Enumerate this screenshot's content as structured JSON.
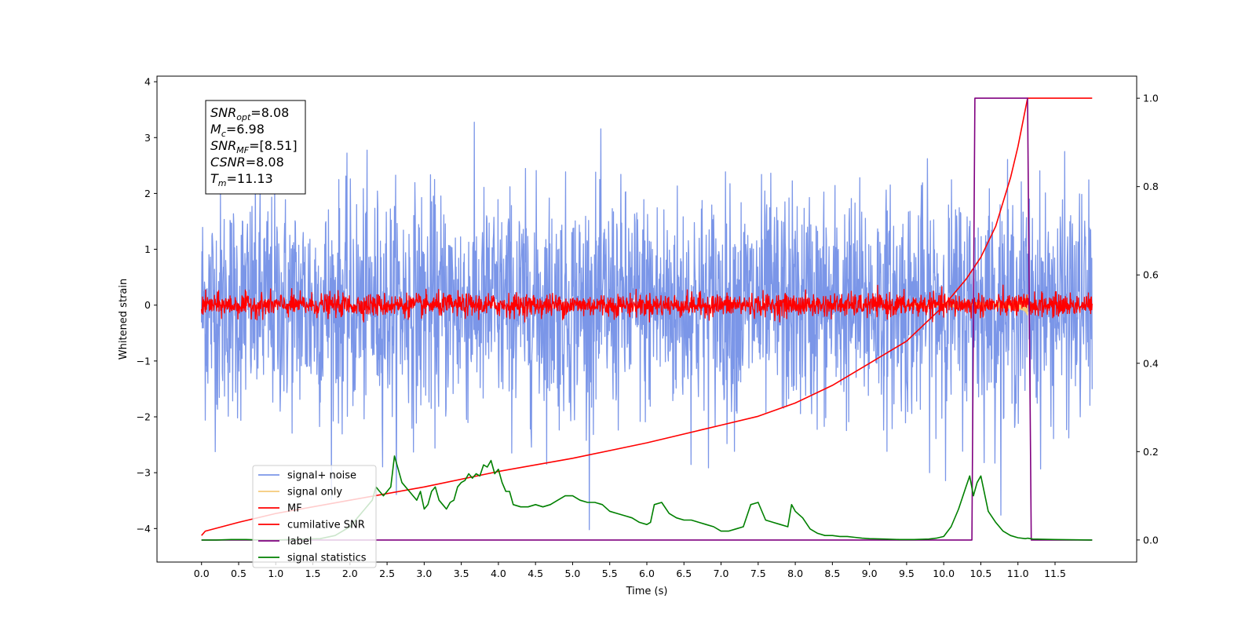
{
  "chart_data": {
    "type": "line",
    "title": "",
    "xlabel": "Time (s)",
    "ylabel": "Whitened strain",
    "xlim": [
      -0.6,
      12.6
    ],
    "ylim": [
      -4.6,
      4.1
    ],
    "y2lim": [
      -0.05,
      1.05
    ],
    "x_ticks": [
      0.0,
      0.5,
      1.0,
      1.5,
      2.0,
      2.5,
      3.0,
      3.5,
      4.0,
      4.5,
      5.0,
      5.5,
      6.0,
      6.5,
      7.0,
      7.5,
      8.0,
      8.5,
      9.0,
      9.5,
      10.0,
      10.5,
      11.0,
      11.5
    ],
    "x_tick_labels": [
      "0.0",
      "0.5",
      "1.0",
      "1.5",
      "2.0",
      "2.5",
      "3.0",
      "3.5",
      "4.0",
      "4.5",
      "5.0",
      "5.5",
      "6.0",
      "6.5",
      "7.0",
      "7.5",
      "8.0",
      "8.5",
      "9.0",
      "9.5",
      "10.0",
      "10.5",
      "11.0",
      "11.5"
    ],
    "y_ticks": [
      -4,
      -3,
      -2,
      -1,
      0,
      1,
      2,
      3,
      4
    ],
    "y_tick_labels": [
      "−4",
      "−3",
      "−2",
      "−1",
      "0",
      "1",
      "2",
      "3",
      "4"
    ],
    "y2_ticks": [
      0.0,
      0.2,
      0.4,
      0.6,
      0.8,
      1.0
    ],
    "y2_tick_labels": [
      "0.0",
      "0.2",
      "0.4",
      "0.6",
      "0.8",
      "1.0"
    ],
    "grid": false,
    "legend_position": "lower-left",
    "info_box": [
      {
        "name": "SNR",
        "sub": "opt",
        "value": "=8.08"
      },
      {
        "name": "M",
        "sub": "c",
        "value": "=6.98"
      },
      {
        "name": "SNR",
        "sub": "MF",
        "value": "=[8.51]"
      },
      {
        "name": "CSNR",
        "sub": "",
        "value": "=8.08"
      },
      {
        "name": "T",
        "sub": "m",
        "value": "=11.13"
      }
    ],
    "series": [
      {
        "name": "signal+ noise",
        "color": "#7b96e8",
        "axis": "left",
        "kind": "noise",
        "sigma": 1.0,
        "x_range": [
          0.0,
          12.0
        ]
      },
      {
        "name": "signal only",
        "color": "#f5c97a",
        "axis": "left",
        "kind": "chirp",
        "x_range": [
          9.5,
          11.13
        ]
      },
      {
        "name": "MF",
        "color": "#ff0000",
        "axis": "left",
        "kind": "noise",
        "sigma": 0.1,
        "x_range": [
          0.0,
          12.0
        ]
      },
      {
        "name": "cumilative SNR",
        "color": "#ff0000",
        "axis": "right",
        "kind": "line",
        "x": [
          0.0,
          0.05,
          0.5,
          1.0,
          2.0,
          3.0,
          4.0,
          5.0,
          6.0,
          7.0,
          7.5,
          8.0,
          8.5,
          9.0,
          9.5,
          10.0,
          10.3,
          10.5,
          10.7,
          10.9,
          11.0,
          11.13,
          12.0
        ],
        "y": [
          0.01,
          0.02,
          0.04,
          0.06,
          0.09,
          0.12,
          0.155,
          0.185,
          0.22,
          0.26,
          0.28,
          0.31,
          0.35,
          0.4,
          0.45,
          0.53,
          0.59,
          0.64,
          0.71,
          0.82,
          0.89,
          1.0,
          1.0
        ]
      },
      {
        "name": "label",
        "color": "#800080",
        "axis": "right",
        "kind": "line",
        "x": [
          0.0,
          10.38,
          10.42,
          11.13,
          11.18,
          12.0
        ],
        "y": [
          0.0,
          0.0,
          1.0,
          1.0,
          0.0,
          0.0
        ]
      },
      {
        "name": "signal statistics",
        "color": "#008000",
        "axis": "right",
        "kind": "line",
        "x": [
          0.0,
          0.2,
          0.4,
          0.6,
          0.8,
          1.0,
          1.2,
          1.4,
          1.6,
          1.8,
          2.0,
          2.1,
          2.2,
          2.3,
          2.35,
          2.4,
          2.45,
          2.5,
          2.55,
          2.6,
          2.65,
          2.7,
          2.75,
          2.8,
          2.85,
          2.9,
          2.95,
          3.0,
          3.05,
          3.1,
          3.15,
          3.2,
          3.25,
          3.3,
          3.35,
          3.4,
          3.45,
          3.5,
          3.55,
          3.6,
          3.65,
          3.7,
          3.75,
          3.8,
          3.85,
          3.9,
          3.95,
          4.0,
          4.05,
          4.1,
          4.15,
          4.2,
          4.3,
          4.4,
          4.5,
          4.6,
          4.7,
          4.8,
          4.9,
          5.0,
          5.1,
          5.2,
          5.3,
          5.4,
          5.5,
          5.6,
          5.7,
          5.8,
          5.9,
          6.0,
          6.05,
          6.1,
          6.2,
          6.3,
          6.4,
          6.5,
          6.6,
          6.7,
          6.8,
          6.9,
          7.0,
          7.1,
          7.2,
          7.3,
          7.4,
          7.5,
          7.6,
          7.7,
          7.8,
          7.9,
          7.95,
          8.0,
          8.1,
          8.2,
          8.3,
          8.4,
          8.5,
          8.6,
          8.7,
          8.8,
          8.9,
          9.0,
          9.2,
          9.4,
          9.6,
          9.8,
          9.9,
          10.0,
          10.1,
          10.2,
          10.3,
          10.35,
          10.4,
          10.45,
          10.5,
          10.6,
          10.7,
          10.8,
          10.9,
          11.0,
          11.1,
          11.13,
          11.2,
          11.5,
          12.0
        ],
        "y": [
          0.0,
          0.0,
          0.001,
          0.001,
          0.0,
          0.0,
          0.001,
          0.002,
          0.003,
          0.01,
          0.03,
          0.05,
          0.07,
          0.09,
          0.12,
          0.11,
          0.1,
          0.11,
          0.12,
          0.19,
          0.16,
          0.13,
          0.12,
          0.11,
          0.1,
          0.09,
          0.11,
          0.07,
          0.08,
          0.11,
          0.12,
          0.09,
          0.08,
          0.07,
          0.085,
          0.09,
          0.12,
          0.13,
          0.135,
          0.15,
          0.14,
          0.15,
          0.145,
          0.17,
          0.165,
          0.18,
          0.15,
          0.16,
          0.13,
          0.11,
          0.11,
          0.08,
          0.075,
          0.075,
          0.08,
          0.075,
          0.08,
          0.09,
          0.1,
          0.1,
          0.09,
          0.085,
          0.085,
          0.08,
          0.065,
          0.06,
          0.055,
          0.05,
          0.04,
          0.035,
          0.04,
          0.08,
          0.085,
          0.06,
          0.05,
          0.045,
          0.045,
          0.04,
          0.035,
          0.03,
          0.02,
          0.02,
          0.025,
          0.03,
          0.08,
          0.085,
          0.045,
          0.04,
          0.035,
          0.03,
          0.08,
          0.065,
          0.05,
          0.025,
          0.015,
          0.01,
          0.01,
          0.008,
          0.008,
          0.006,
          0.004,
          0.003,
          0.002,
          0.001,
          0.001,
          0.002,
          0.004,
          0.008,
          0.03,
          0.07,
          0.12,
          0.145,
          0.1,
          0.13,
          0.145,
          0.065,
          0.04,
          0.02,
          0.01,
          0.005,
          0.003,
          0.004,
          0.002,
          0.001,
          0.0
        ]
      }
    ]
  }
}
